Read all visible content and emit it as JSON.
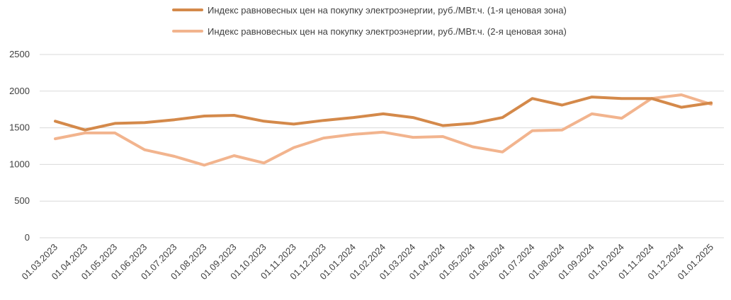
{
  "chart_data": {
    "type": "line",
    "categories": [
      "01.03.2023",
      "01.04.2023",
      "01.05.2023",
      "01.06.2023",
      "01.07.2023",
      "01.08.2023",
      "01.09.2023",
      "01.10.2023",
      "01.11.2023",
      "01.12.2023",
      "01.01.2024",
      "01.02.2024",
      "01.03.2024",
      "01.04.2024",
      "01.05.2024",
      "01.06.2024",
      "01.07.2024",
      "01.08.2024",
      "01.09.2024",
      "01.10.2024",
      "01.11.2024",
      "01.12.2024",
      "01.01.2025"
    ],
    "series": [
      {
        "name": "Индекс равновесных цен на покупку электроэнергии, руб./МВт.ч. (1-я ценовая зона)",
        "color": "#d4894a",
        "values": [
          1590,
          1470,
          1560,
          1570,
          1610,
          1660,
          1670,
          1590,
          1550,
          1600,
          1640,
          1690,
          1640,
          1530,
          1560,
          1640,
          1900,
          1810,
          1920,
          1900,
          1900,
          1780,
          1840
        ]
      },
      {
        "name": "Индекс равновесных цен на покупку электроэнергии, руб./МВт.ч. (2-я ценовая зона)",
        "color": "#f2b48e",
        "values": [
          1350,
          1430,
          1430,
          1200,
          1110,
          990,
          1120,
          1020,
          1230,
          1360,
          1410,
          1440,
          1370,
          1380,
          1240,
          1170,
          1460,
          1470,
          1690,
          1630,
          1900,
          1950,
          1820
        ]
      }
    ],
    "yticks": [
      0,
      500,
      1000,
      1500,
      2000,
      2500
    ],
    "ylim": [
      0,
      2500
    ],
    "grid": "horizontal",
    "legend_position": "top-center"
  }
}
